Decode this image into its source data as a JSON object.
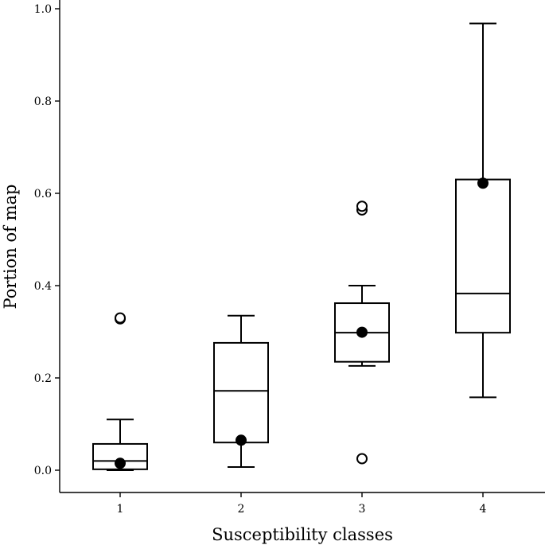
{
  "chart_data": {
    "type": "box",
    "title": "",
    "xlabel": "Susceptibility classes",
    "ylabel": "Portion of map",
    "ylim": [
      -0.05,
      1.02
    ],
    "yticks": [
      0.0,
      0.2,
      0.4,
      0.6,
      0.8,
      1.0
    ],
    "ytick_labels": [
      "0.0",
      "0.2",
      "0.4",
      "0.6",
      "0.8",
      "1.0"
    ],
    "categories": [
      "1",
      "2",
      "3",
      "4"
    ],
    "boxes": [
      {
        "category": "1",
        "whisker_low": 0.0,
        "q1": 0.002,
        "median": 0.02,
        "q3": 0.057,
        "whisker_high": 0.11,
        "mean": 0.015,
        "outliers": [
          0.328,
          0.33
        ]
      },
      {
        "category": "2",
        "whisker_low": 0.007,
        "q1": 0.06,
        "median": 0.172,
        "q3": 0.276,
        "whisker_high": 0.335,
        "mean": 0.065,
        "outliers": []
      },
      {
        "category": "3",
        "whisker_low": 0.226,
        "q1": 0.235,
        "median": 0.298,
        "q3": 0.362,
        "whisker_high": 0.4,
        "mean": 0.299,
        "outliers": [
          0.025,
          0.564,
          0.572
        ]
      },
      {
        "category": "4",
        "whisker_low": 0.158,
        "q1": 0.298,
        "median": 0.383,
        "q3": 0.63,
        "whisker_high": 0.968,
        "mean": 0.622,
        "outliers": []
      }
    ],
    "grid": false,
    "legend": "none"
  }
}
